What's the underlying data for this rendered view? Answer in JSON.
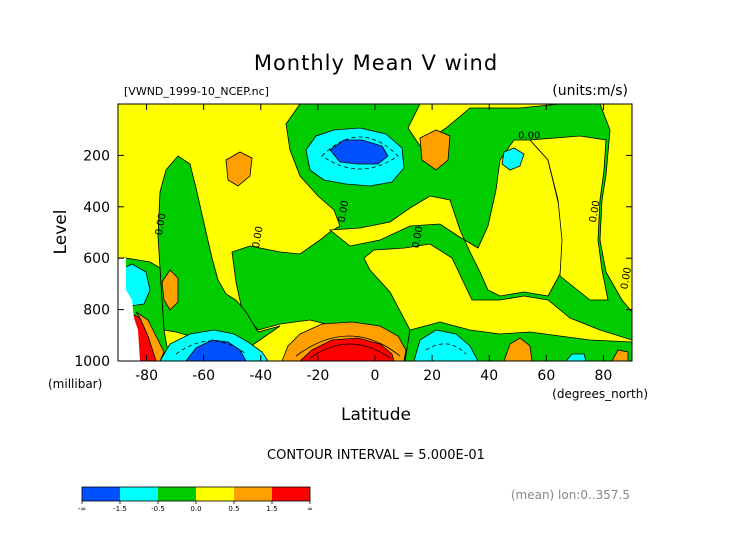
{
  "chart_data": {
    "type": "contour",
    "title": "Monthly Mean V wind",
    "source_label": "[VWND_1999-10_NCEP.nc]",
    "units_label": "(units:m/s)",
    "xlabel": "Latitude",
    "x_units": "(degrees_north)",
    "ylabel": "Level",
    "y_units": "(millibar)",
    "xlim": [
      -90,
      90
    ],
    "ylim": [
      1000,
      0
    ],
    "x_ticks": [
      -80,
      -60,
      -40,
      -20,
      0,
      20,
      40,
      60,
      80
    ],
    "y_ticks": [
      200,
      400,
      600,
      800,
      1000
    ],
    "contour_interval_text": "CONTOUR INTERVAL = 5.000E-01",
    "footer_text": "(mean) lon:0..357.5",
    "contour_labels": [
      {
        "text": "0.00",
        "lat": 54,
        "lev": 135
      },
      {
        "text": "0.00",
        "lat": -74,
        "lev": 470
      },
      {
        "text": "0.00",
        "lat": -40,
        "lev": 520
      },
      {
        "text": "0.00",
        "lat": -10,
        "lev": 420
      },
      {
        "text": "0.00",
        "lat": 16,
        "lev": 520
      },
      {
        "text": "0.00",
        "lat": 78,
        "lev": 420
      },
      {
        "text": "0.00",
        "lat": 89,
        "lev": 680
      }
    ],
    "colorbar": {
      "colors": [
        "#0050ff",
        "#00ffff",
        "#00cc00",
        "#ffff00",
        "#ffa000",
        "#ff0000"
      ],
      "tick_labels": [
        "-∞",
        "-1.5",
        "-0.5",
        "0.0",
        "0.5",
        "1.5",
        "∞"
      ]
    }
  }
}
